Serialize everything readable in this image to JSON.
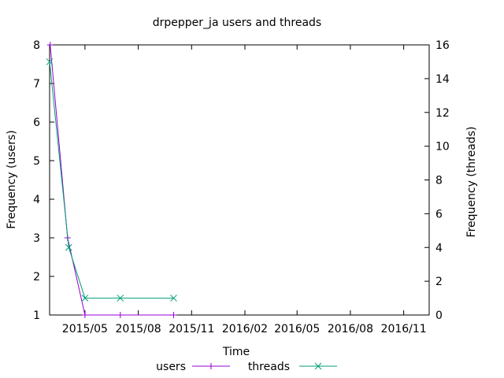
{
  "chart_data": {
    "type": "line",
    "title": "drpepper_ja users and threads",
    "xlabel": "Time",
    "ylabel_left": "Frequency (users)",
    "ylabel_right": "Frequency (threads)",
    "x_range": [
      "2015-03-01",
      "2016-12-15"
    ],
    "x_ticks": [
      {
        "date": "2015-05-01",
        "label": "2015/05"
      },
      {
        "date": "2015-08-01",
        "label": "2015/08"
      },
      {
        "date": "2015-11-01",
        "label": "2015/11"
      },
      {
        "date": "2016-02-01",
        "label": "2016/02"
      },
      {
        "date": "2016-05-01",
        "label": "2016/05"
      },
      {
        "date": "2016-08-01",
        "label": "2016/08"
      },
      {
        "date": "2016-11-01",
        "label": "2016/11"
      }
    ],
    "y_left": {
      "min": 1,
      "max": 8,
      "ticks": [
        1,
        2,
        3,
        4,
        5,
        6,
        7,
        8
      ]
    },
    "y_right": {
      "min": 0,
      "max": 16,
      "ticks": [
        0,
        2,
        4,
        6,
        8,
        10,
        12,
        14,
        16
      ]
    },
    "grid": false,
    "legend_position": "bottom",
    "series": [
      {
        "name": "users",
        "axis": "left",
        "color": "#9400d3",
        "marker": "plus",
        "points": [
          {
            "x": "2015-03-02",
            "y": 8
          },
          {
            "x": "2015-04-01",
            "y": 3
          },
          {
            "x": "2015-05-01",
            "y": 1
          },
          {
            "x": "2015-07-01",
            "y": 1
          },
          {
            "x": "2015-10-01",
            "y": 1
          }
        ]
      },
      {
        "name": "threads",
        "axis": "right",
        "color": "#009e73",
        "marker": "cross",
        "points": [
          {
            "x": "2015-03-01",
            "y": 15
          },
          {
            "x": "2015-04-03",
            "y": 4
          },
          {
            "x": "2015-05-01",
            "y": 1
          },
          {
            "x": "2015-07-01",
            "y": 1
          },
          {
            "x": "2015-10-01",
            "y": 1
          }
        ]
      }
    ]
  }
}
